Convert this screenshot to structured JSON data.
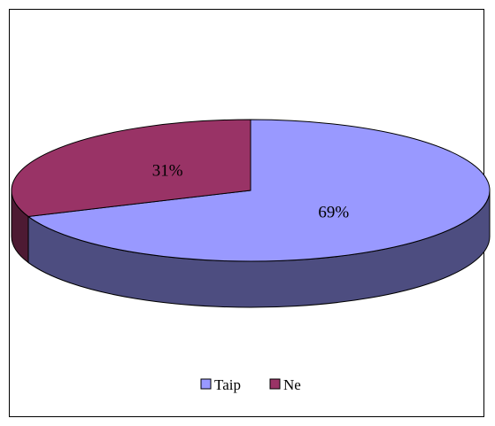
{
  "chart_data": {
    "type": "pie",
    "style": "3d",
    "categories": [
      "Taip",
      "Ne"
    ],
    "values": [
      69,
      31
    ],
    "labels": [
      "69%",
      "31%"
    ],
    "colors": [
      "#9999ff",
      "#993366"
    ],
    "side_colors": [
      "#4d4d80",
      "#4d1a33"
    ],
    "legend_position": "bottom",
    "title": ""
  }
}
